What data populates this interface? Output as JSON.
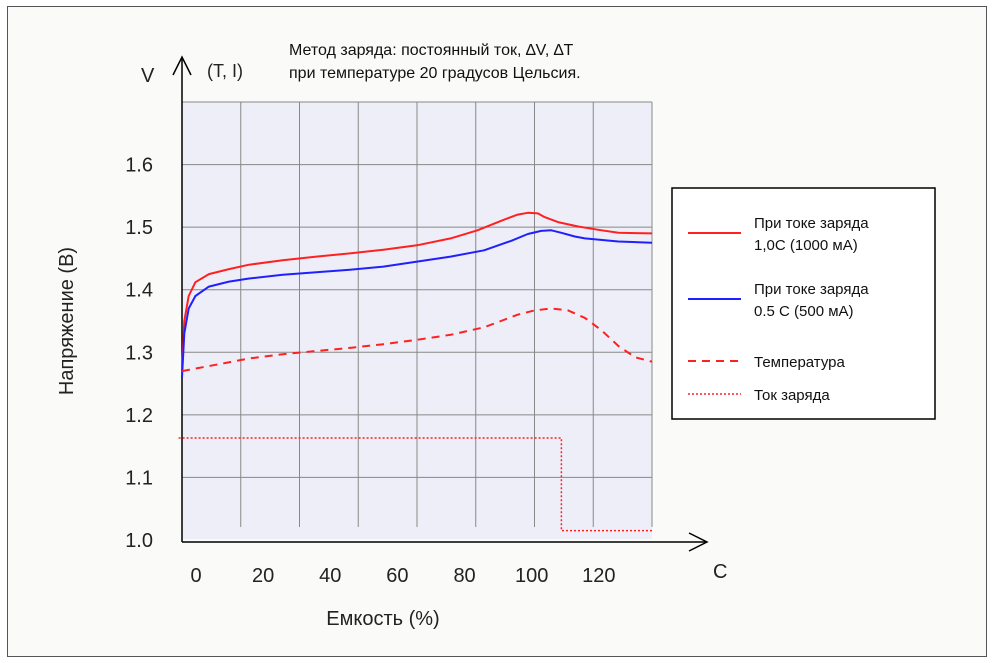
{
  "chart_data": {
    "type": "line",
    "note_line1": "Метод заряда: постоянный ток, ∆V, ∆T",
    "note_line2": "при температуре 20 градусов Цельсия.",
    "y_axis_symbol": "V",
    "y_axis_secondary": "(T, I)",
    "x_axis_symbol": "C",
    "xlabel": "Емкость (%)",
    "ylabel": "Напряжение (В)",
    "ylim": [
      1.0,
      1.7
    ],
    "xlim": [
      0,
      140
    ],
    "y_ticks": [
      "1.0",
      "1.1",
      "1.2",
      "1.3",
      "1.4",
      "1.5",
      "1.6"
    ],
    "x_ticks": [
      "0",
      "20",
      "40",
      "60",
      "80",
      "100",
      "120"
    ],
    "grid": true,
    "legend_position": "right",
    "series": [
      {
        "name": "При токе заряда 1,0С (1000 мА)",
        "legend_lines": [
          "При токе заряда",
          "1,0С (1000 мА)"
        ],
        "color": "#ff2020",
        "style": "solid",
        "x": [
          0,
          0.7,
          2,
          4,
          8,
          14,
          20,
          30,
          40,
          50,
          60,
          70,
          80,
          88,
          95,
          100,
          103,
          106,
          108,
          112,
          118,
          125,
          130,
          140
        ],
        "y": [
          1.27,
          1.35,
          1.39,
          1.412,
          1.425,
          1.433,
          1.44,
          1.447,
          1.453,
          1.458,
          1.464,
          1.471,
          1.482,
          1.495,
          1.51,
          1.52,
          1.523,
          1.522,
          1.516,
          1.508,
          1.501,
          1.495,
          1.491,
          1.49
        ]
      },
      {
        "name": "При токе заряда 0.5 С (500 мА)",
        "legend_lines": [
          "При токе заряда",
          " 0.5 С (500 мА)"
        ],
        "color": "#2020ff",
        "style": "solid",
        "x": [
          0,
          0.7,
          2,
          4,
          8,
          14,
          20,
          30,
          40,
          50,
          60,
          70,
          80,
          90,
          98,
          103,
          107,
          110,
          113,
          117,
          120,
          130,
          140
        ],
        "y": [
          1.26,
          1.33,
          1.37,
          1.39,
          1.405,
          1.413,
          1.418,
          1.424,
          1.428,
          1.432,
          1.437,
          1.445,
          1.453,
          1.463,
          1.478,
          1.489,
          1.494,
          1.495,
          1.491,
          1.485,
          1.482,
          1.477,
          1.475
        ]
      },
      {
        "name": "Температура",
        "legend_lines": [
          "Температура"
        ],
        "color": "#ff2020",
        "style": "dashed",
        "x": [
          0,
          10,
          20,
          30,
          40,
          50,
          60,
          70,
          80,
          90,
          95,
          100,
          105,
          110,
          115,
          120,
          125,
          130,
          135,
          140
        ],
        "y": [
          1.27,
          1.28,
          1.29,
          1.297,
          1.302,
          1.307,
          1.313,
          1.32,
          1.328,
          1.34,
          1.35,
          1.36,
          1.367,
          1.37,
          1.367,
          1.355,
          1.335,
          1.31,
          1.292,
          1.285
        ]
      },
      {
        "name": "Ток заряда",
        "legend_lines": [
          "Ток заряда"
        ],
        "color": "#ff2020",
        "style": "dotted",
        "x": [
          -1,
          113,
          113,
          140
        ],
        "y": [
          1.163,
          1.163,
          1.015,
          1.015
        ]
      }
    ]
  }
}
